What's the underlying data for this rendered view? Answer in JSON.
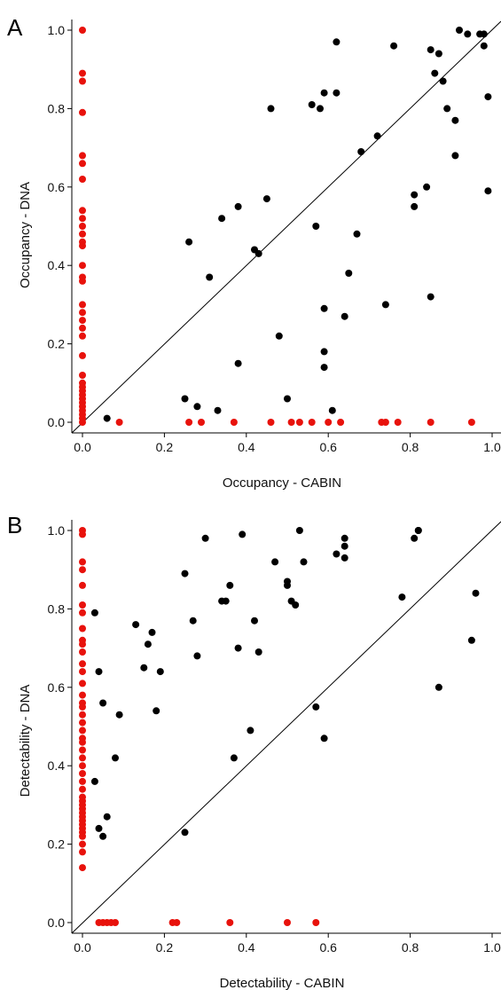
{
  "chart_data": [
    {
      "type": "scatter",
      "panel_label": "A",
      "xlabel": "Occupancy - CABIN",
      "ylabel": "Occupancy - DNA",
      "xlim": [
        0,
        1
      ],
      "ylim": [
        0,
        1
      ],
      "xticks": [
        "0.0",
        "0.2",
        "0.4",
        "0.6",
        "0.8",
        "1.0"
      ],
      "yticks": [
        "0.0",
        "0.2",
        "0.4",
        "0.6",
        "0.8",
        "1.0"
      ],
      "diagonal": true,
      "grid": false,
      "colors": {
        "black": "#000000",
        "red": "#e8120c"
      },
      "series": [
        {
          "color": "#000000",
          "points": [
            [
              0.06,
              0.01
            ],
            [
              0.25,
              0.06
            ],
            [
              0.28,
              0.04
            ],
            [
              0.33,
              0.03
            ],
            [
              0.26,
              0.46
            ],
            [
              0.31,
              0.37
            ],
            [
              0.34,
              0.52
            ],
            [
              0.38,
              0.55
            ],
            [
              0.38,
              0.15
            ],
            [
              0.42,
              0.44
            ],
            [
              0.43,
              0.43
            ],
            [
              0.45,
              0.57
            ],
            [
              0.46,
              0.8
            ],
            [
              0.48,
              0.22
            ],
            [
              0.5,
              0.06
            ],
            [
              0.56,
              0.81
            ],
            [
              0.57,
              0.5
            ],
            [
              0.58,
              0.8
            ],
            [
              0.59,
              0.84
            ],
            [
              0.59,
              0.29
            ],
            [
              0.59,
              0.18
            ],
            [
              0.59,
              0.14
            ],
            [
              0.61,
              0.03
            ],
            [
              0.62,
              0.97
            ],
            [
              0.62,
              0.84
            ],
            [
              0.64,
              0.27
            ],
            [
              0.65,
              0.38
            ],
            [
              0.67,
              0.48
            ],
            [
              0.68,
              0.69
            ],
            [
              0.72,
              0.73
            ],
            [
              0.74,
              0.3
            ],
            [
              0.76,
              0.96
            ],
            [
              0.81,
              0.58
            ],
            [
              0.81,
              0.55
            ],
            [
              0.84,
              0.6
            ],
            [
              0.85,
              0.32
            ],
            [
              0.85,
              0.95
            ],
            [
              0.86,
              0.89
            ],
            [
              0.87,
              0.94
            ],
            [
              0.88,
              0.87
            ],
            [
              0.89,
              0.8
            ],
            [
              0.91,
              0.77
            ],
            [
              0.91,
              0.68
            ],
            [
              0.92,
              1.0
            ],
            [
              0.94,
              0.99
            ],
            [
              0.97,
              0.99
            ],
            [
              0.98,
              0.99
            ],
            [
              0.98,
              0.96
            ],
            [
              0.99,
              0.83
            ],
            [
              0.99,
              0.59
            ]
          ]
        },
        {
          "color": "#e8120c",
          "points": [
            [
              0,
              1.0
            ],
            [
              0,
              0.89
            ],
            [
              0,
              0.87
            ],
            [
              0,
              0.79
            ],
            [
              0,
              0.68
            ],
            [
              0,
              0.66
            ],
            [
              0,
              0.62
            ],
            [
              0,
              0.54
            ],
            [
              0,
              0.52
            ],
            [
              0,
              0.5
            ],
            [
              0,
              0.48
            ],
            [
              0,
              0.46
            ],
            [
              0,
              0.45
            ],
            [
              0,
              0.4
            ],
            [
              0,
              0.37
            ],
            [
              0,
              0.36
            ],
            [
              0,
              0.3
            ],
            [
              0,
              0.28
            ],
            [
              0,
              0.26
            ],
            [
              0,
              0.24
            ],
            [
              0,
              0.22
            ],
            [
              0,
              0.17
            ],
            [
              0,
              0.12
            ],
            [
              0,
              0.1
            ],
            [
              0,
              0.09
            ],
            [
              0,
              0.08
            ],
            [
              0,
              0.07
            ],
            [
              0,
              0.06
            ],
            [
              0,
              0.05
            ],
            [
              0,
              0.04
            ],
            [
              0,
              0.03
            ],
            [
              0,
              0.02
            ],
            [
              0,
              0.01
            ],
            [
              0,
              0.0
            ],
            [
              0.09,
              0
            ],
            [
              0.26,
              0
            ],
            [
              0.29,
              0
            ],
            [
              0.37,
              0
            ],
            [
              0.46,
              0
            ],
            [
              0.51,
              0
            ],
            [
              0.53,
              0
            ],
            [
              0.56,
              0
            ],
            [
              0.6,
              0
            ],
            [
              0.63,
              0
            ],
            [
              0.73,
              0
            ],
            [
              0.74,
              0
            ],
            [
              0.77,
              0
            ],
            [
              0.85,
              0
            ],
            [
              0.95,
              0
            ]
          ]
        }
      ]
    },
    {
      "type": "scatter",
      "panel_label": "B",
      "xlabel": "Detectability - CABIN",
      "ylabel": "Detectability - DNA",
      "xlim": [
        0,
        1
      ],
      "ylim": [
        0,
        1
      ],
      "xticks": [
        "0.0",
        "0.2",
        "0.4",
        "0.6",
        "0.8",
        "1.0"
      ],
      "yticks": [
        "0.0",
        "0.2",
        "0.4",
        "0.6",
        "0.8",
        "1.0"
      ],
      "diagonal": true,
      "grid": false,
      "colors": {
        "black": "#000000",
        "red": "#e8120c"
      },
      "series": [
        {
          "color": "#000000",
          "points": [
            [
              0.03,
              0.79
            ],
            [
              0.03,
              0.36
            ],
            [
              0.04,
              0.24
            ],
            [
              0.04,
              0.64
            ],
            [
              0.05,
              0.56
            ],
            [
              0.05,
              0.22
            ],
            [
              0.06,
              0.27
            ],
            [
              0.08,
              0.42
            ],
            [
              0.09,
              0.53
            ],
            [
              0.13,
              0.76
            ],
            [
              0.15,
              0.65
            ],
            [
              0.16,
              0.71
            ],
            [
              0.17,
              0.74
            ],
            [
              0.18,
              0.54
            ],
            [
              0.19,
              0.64
            ],
            [
              0.25,
              0.89
            ],
            [
              0.25,
              0.23
            ],
            [
              0.27,
              0.77
            ],
            [
              0.28,
              0.68
            ],
            [
              0.3,
              0.98
            ],
            [
              0.34,
              0.82
            ],
            [
              0.35,
              0.82
            ],
            [
              0.36,
              0.86
            ],
            [
              0.37,
              0.42
            ],
            [
              0.38,
              0.7
            ],
            [
              0.39,
              0.99
            ],
            [
              0.41,
              0.49
            ],
            [
              0.42,
              0.77
            ],
            [
              0.43,
              0.69
            ],
            [
              0.47,
              0.92
            ],
            [
              0.5,
              0.87
            ],
            [
              0.5,
              0.86
            ],
            [
              0.51,
              0.82
            ],
            [
              0.52,
              0.81
            ],
            [
              0.53,
              1.0
            ],
            [
              0.54,
              0.92
            ],
            [
              0.57,
              0.55
            ],
            [
              0.59,
              0.47
            ],
            [
              0.62,
              0.94
            ],
            [
              0.64,
              0.98
            ],
            [
              0.64,
              0.96
            ],
            [
              0.64,
              0.93
            ],
            [
              0.78,
              0.83
            ],
            [
              0.81,
              0.98
            ],
            [
              0.82,
              1.0
            ],
            [
              0.82,
              1.0
            ],
            [
              0.87,
              0.6
            ],
            [
              0.95,
              0.72
            ],
            [
              0.96,
              0.84
            ]
          ]
        },
        {
          "color": "#e8120c",
          "points": [
            [
              0,
              1.0
            ],
            [
              0,
              0.99
            ],
            [
              0,
              0.92
            ],
            [
              0,
              0.9
            ],
            [
              0,
              0.86
            ],
            [
              0,
              0.81
            ],
            [
              0,
              0.79
            ],
            [
              0,
              0.75
            ],
            [
              0,
              0.72
            ],
            [
              0,
              0.71
            ],
            [
              0,
              0.69
            ],
            [
              0,
              0.66
            ],
            [
              0,
              0.64
            ],
            [
              0,
              0.61
            ],
            [
              0,
              0.58
            ],
            [
              0,
              0.56
            ],
            [
              0,
              0.55
            ],
            [
              0,
              0.53
            ],
            [
              0,
              0.51
            ],
            [
              0,
              0.49
            ],
            [
              0,
              0.47
            ],
            [
              0,
              0.46
            ],
            [
              0,
              0.44
            ],
            [
              0,
              0.42
            ],
            [
              0,
              0.4
            ],
            [
              0,
              0.38
            ],
            [
              0,
              0.36
            ],
            [
              0,
              0.34
            ],
            [
              0,
              0.32
            ],
            [
              0,
              0.31
            ],
            [
              0,
              0.3
            ],
            [
              0,
              0.29
            ],
            [
              0,
              0.28
            ],
            [
              0,
              0.27
            ],
            [
              0,
              0.26
            ],
            [
              0,
              0.25
            ],
            [
              0,
              0.24
            ],
            [
              0,
              0.23
            ],
            [
              0,
              0.22
            ],
            [
              0,
              0.2
            ],
            [
              0,
              0.18
            ],
            [
              0,
              0.14
            ],
            [
              0.04,
              0
            ],
            [
              0.05,
              0
            ],
            [
              0.06,
              0
            ],
            [
              0.07,
              0
            ],
            [
              0.08,
              0
            ],
            [
              0.22,
              0
            ],
            [
              0.23,
              0
            ],
            [
              0.36,
              0
            ],
            [
              0.5,
              0
            ],
            [
              0.57,
              0
            ]
          ]
        }
      ]
    }
  ]
}
